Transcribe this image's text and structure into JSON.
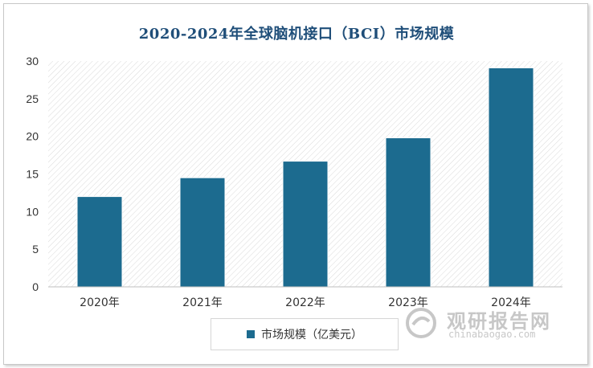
{
  "colors": {
    "bar": "#1c6b8f",
    "title": "#1f4e79",
    "axis_text": "#333333",
    "grid": "#c9c9c9"
  },
  "chart_data": {
    "type": "bar",
    "title": "2020-2024年全球脑机接口（BCI）市场规模",
    "categories": [
      "2020年",
      "2021年",
      "2022年",
      "2023年",
      "2024年"
    ],
    "series": [
      {
        "name": "市场规模（亿美元）",
        "values": [
          12.0,
          14.5,
          16.7,
          19.8,
          29.1
        ]
      }
    ],
    "ylim": [
      0,
      30
    ],
    "yticks": [
      0,
      5,
      10,
      15,
      20,
      25,
      30
    ],
    "xlabel": "",
    "ylabel": "",
    "legend": "bottom-center",
    "grid": false
  },
  "watermark": {
    "name": "观研报告网",
    "url": "chinabaogao.com"
  }
}
